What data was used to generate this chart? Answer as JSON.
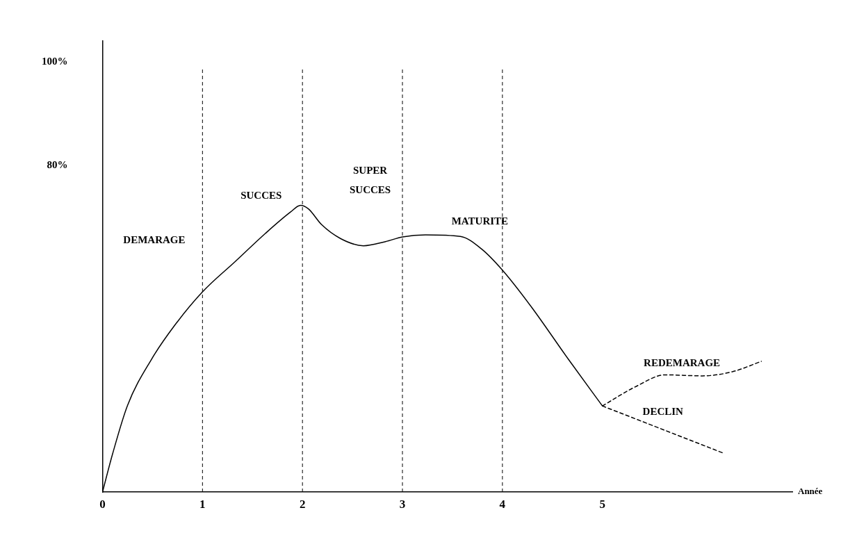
{
  "chart_data": {
    "type": "line",
    "xlabel": "Année",
    "xlim": [
      0,
      6.9
    ],
    "xticks": [
      0,
      1,
      2,
      3,
      4,
      5
    ],
    "ylim": [
      17,
      104
    ],
    "yticks": [
      {
        "value": 80,
        "label": "80%"
      },
      {
        "value": 100,
        "label": "100%"
      }
    ],
    "grid": false,
    "legend": false,
    "marker": "none",
    "series": [
      {
        "color": "#000000",
        "line_style": "solid",
        "x": [
          0,
          0.1,
          0.25,
          0.49,
          0.72,
          1.0,
          1.33,
          1.63,
          1.88,
          1.98,
          2.06,
          2.19,
          2.38,
          2.61,
          2.83,
          3.0,
          3.23,
          3.58,
          3.79,
          4.0,
          4.29,
          4.66,
          5.0
        ],
        "values": [
          17.0,
          24.3,
          33.7,
          42.6,
          49.1,
          55.6,
          61.5,
          66.9,
          71.0,
          72.3,
          71.6,
          68.6,
          65.9,
          64.5,
          65.3,
          66.2,
          66.6,
          66.3,
          63.9,
          59.8,
          52.7,
          42.6,
          33.6
        ]
      },
      {
        "name": "REDEMARAGE",
        "color": "#000000",
        "line_style": "dashed",
        "x": [
          5.0,
          5.33,
          5.63,
          6.0,
          6.3,
          6.59
        ],
        "values": [
          33.6,
          37.3,
          39.6,
          39.4,
          40.2,
          42.2
        ]
      },
      {
        "name": "DECLIN",
        "color": "#000000",
        "line_style": "dashed",
        "x": [
          5.0,
          6.21
        ],
        "values": [
          33.6,
          24.5
        ]
      }
    ],
    "ref_lines": [
      {
        "axis": "x",
        "value": 1,
        "line_style": "dashed",
        "color": "#000000"
      },
      {
        "axis": "x",
        "value": 2,
        "line_style": "dashed",
        "color": "#000000"
      },
      {
        "axis": "x",
        "value": 3,
        "line_style": "dashed",
        "color": "#000000"
      },
      {
        "axis": "x",
        "value": 4,
        "line_style": "dashed",
        "color": "#000000"
      }
    ],
    "annotations": [
      "DEMARAGE",
      "SUCCES",
      "SUPER SUCCES",
      "MATURITE"
    ]
  }
}
